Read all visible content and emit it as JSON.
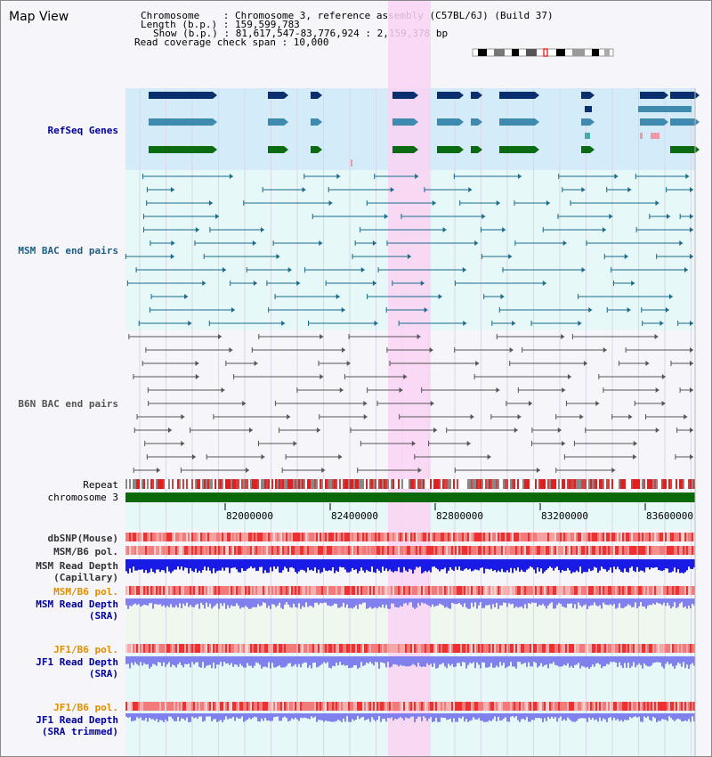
{
  "page": {
    "title": "Map View"
  },
  "info": {
    "chromosome": "Chromosome    : Chromosome 3, reference assembly (C57BL/6J) (Build 37)",
    "length": "Length (b.p.) : 159,599,783",
    "show": "Show (b.p.) : 81,617,547-83,776,924 : 2,159,378 bp",
    "span": "Read coverage check span : 10,000"
  },
  "tracks": {
    "refseq": "RefSeq Genes",
    "msm_bac": "MSM BAC end pairs",
    "b6n_bac": "B6N BAC end pairs",
    "repeat": "Repeat",
    "chromosome": "chromosome 3",
    "dbsnp": "dbSNP(Mouse)",
    "msm_b6_pol_1": "MSM/B6 pol.",
    "msm_read_depth_cap_1": "MSM Read Depth",
    "msm_read_depth_cap_2": "(Capillary)",
    "msm_b6_pol_2": "MSM/B6 pol.",
    "msm_read_depth_sra_1": "MSM Read Depth",
    "msm_read_depth_sra_2": "(SRA)",
    "jf1_b6_pol_1": "JF1/B6 pol.",
    "jf1_read_depth_sra_1": "JF1 Read Depth",
    "jf1_read_depth_sra_2": "(SRA)",
    "jf1_b6_pol_2": "JF1/B6 pol.",
    "jf1_read_depth_trim_1": "JF1 Read Depth",
    "jf1_read_depth_trim_2": "(SRA trimmed)"
  },
  "axis": {
    "ticks": [
      "82000000",
      "82400000",
      "82800000",
      "83200000",
      "83600000"
    ]
  },
  "colors": {
    "highlight": "#f9d4f3",
    "refseq_bg": "#d4ecfa",
    "bac_bg": "#e6f8f8",
    "gene_dark": "#0a2f6e",
    "gene_mid": "#3f8aaf",
    "gene_green": "#0b6b12",
    "msm_feature": "#1a6a8a",
    "b6n_feature": "#555555",
    "chromosome_bar": "#0a6a0a",
    "depth_blue": "#1a1ae6",
    "depth_light": "#8080ee",
    "snp_red": "#ee4444"
  }
}
